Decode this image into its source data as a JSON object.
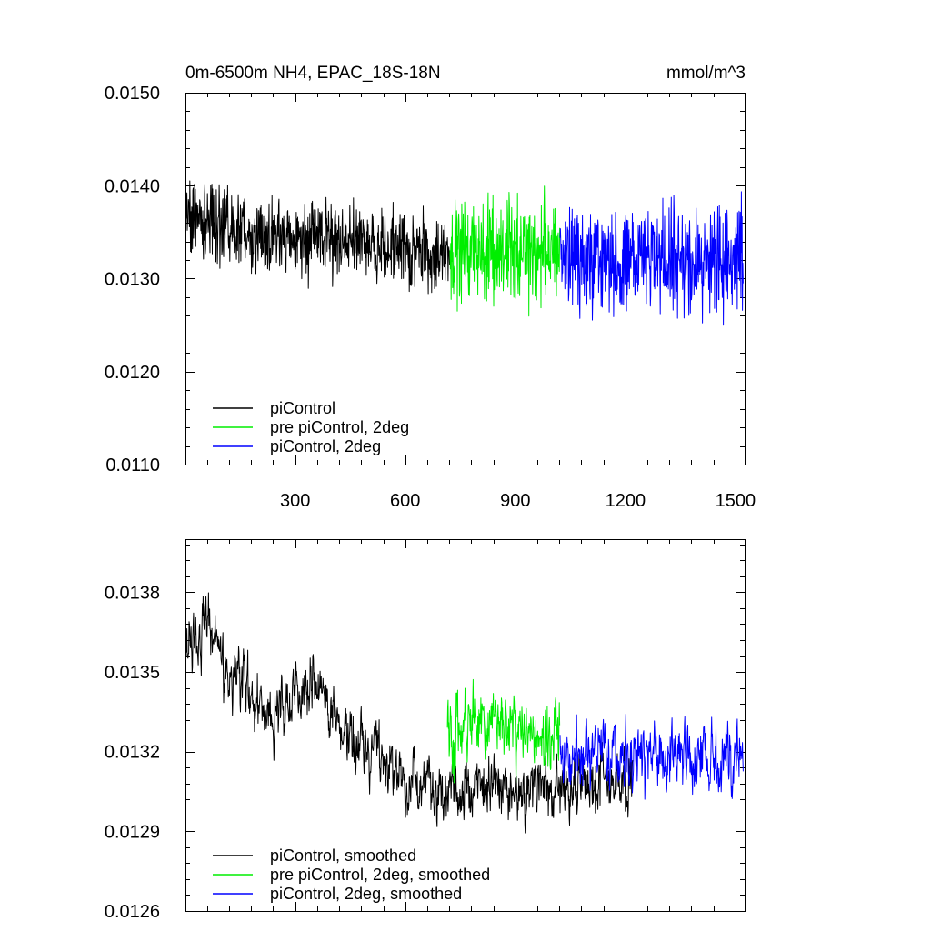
{
  "colors": {
    "piControl": "#000000",
    "pre_piControl_2deg": "#00ee00",
    "piControl_2deg": "#0000ff"
  },
  "chart_data": [
    {
      "type": "line",
      "title": "0m-6500m NH4, EPAC_18S-18N",
      "units": "mmol/m^3",
      "xlim": [
        1,
        1525
      ],
      "ylim": [
        0.011,
        0.015
      ],
      "xticks": [
        300,
        600,
        900,
        1200,
        1500
      ],
      "xtick_labels": [
        "300",
        "600",
        "900",
        "1200",
        "1500"
      ],
      "yticks": [
        0.011,
        0.012,
        0.013,
        0.014,
        0.015
      ],
      "ytick_labels": [
        "0.0110",
        "0.0120",
        "0.0130",
        "0.0140",
        "0.0150"
      ],
      "grid": false,
      "legend_position": "bottom-left",
      "series": [
        {
          "name": "piControl",
          "color_key": "piControl",
          "x_start": 1,
          "x_end": 721,
          "anchors": [
            [
              1,
              0.0137
            ],
            [
              150,
              0.0135
            ],
            [
              300,
              0.01345
            ],
            [
              450,
              0.0134
            ],
            [
              600,
              0.0133
            ],
            [
              721,
              0.0132
            ]
          ],
          "noise": 0.00045,
          "peak_max": 0.01473,
          "trough_min": 0.01155
        },
        {
          "name": "pre piControl, 2deg",
          "color_key": "pre_piControl_2deg",
          "x_start": 722,
          "x_end": 1021,
          "anchors": [
            [
              722,
              0.0133
            ],
            [
              1021,
              0.0133
            ]
          ],
          "noise": 0.0006,
          "peak_max": 0.01458,
          "trough_min": 0.01132
        },
        {
          "name": "piControl, 2deg",
          "color_key": "piControl_2deg",
          "x_start": 1022,
          "x_end": 1521,
          "anchors": [
            [
              1022,
              0.0132
            ],
            [
              1521,
              0.0132
            ]
          ],
          "noise": 0.0006,
          "peak_max": 0.01462,
          "trough_min": 0.01138
        }
      ]
    },
    {
      "type": "line",
      "title": "",
      "xlim": [
        1,
        1525
      ],
      "ylim": [
        0.0126,
        0.014
      ],
      "xticks": [
        300,
        600,
        900,
        1200,
        1500
      ],
      "xtick_labels": [],
      "yticks": [
        0.0126,
        0.0129,
        0.0132,
        0.0135,
        0.0138
      ],
      "ytick_labels": [
        "0.0126",
        "0.0129",
        "0.0132",
        "0.0135",
        "0.0138"
      ],
      "grid": false,
      "legend_position": "bottom-left",
      "series": [
        {
          "name": "piControl, smoothed",
          "color_key": "piControl",
          "x_start": 1,
          "x_end": 1220,
          "anchors": [
            [
              1,
              0.01363
            ],
            [
              60,
              0.01365
            ],
            [
              150,
              0.01345
            ],
            [
              230,
              0.01335
            ],
            [
              350,
              0.01345
            ],
            [
              430,
              0.01328
            ],
            [
              550,
              0.01312
            ],
            [
              650,
              0.01306
            ],
            [
              800,
              0.01305
            ],
            [
              1000,
              0.01306
            ],
            [
              1220,
              0.01308
            ]
          ],
          "noise": 0.00015,
          "peak_max": 0.01389,
          "trough_min": 0.01261
        },
        {
          "name": "pre piControl, 2deg, smoothed",
          "color_key": "pre_piControl_2deg",
          "x_start": 715,
          "x_end": 1021,
          "anchors": [
            [
              715,
              0.01325
            ],
            [
              800,
              0.01332
            ],
            [
              1021,
              0.01322
            ]
          ],
          "noise": 0.00018,
          "peak_max": 0.01387,
          "trough_min": 0.01289
        },
        {
          "name": "piControl, 2deg, smoothed",
          "color_key": "piControl_2deg",
          "x_start": 1022,
          "x_end": 1521,
          "anchors": [
            [
              1022,
              0.01318
            ],
            [
              1521,
              0.01318
            ]
          ],
          "noise": 0.00017,
          "peak_max": 0.01359,
          "trough_min": 0.01272
        }
      ]
    }
  ]
}
